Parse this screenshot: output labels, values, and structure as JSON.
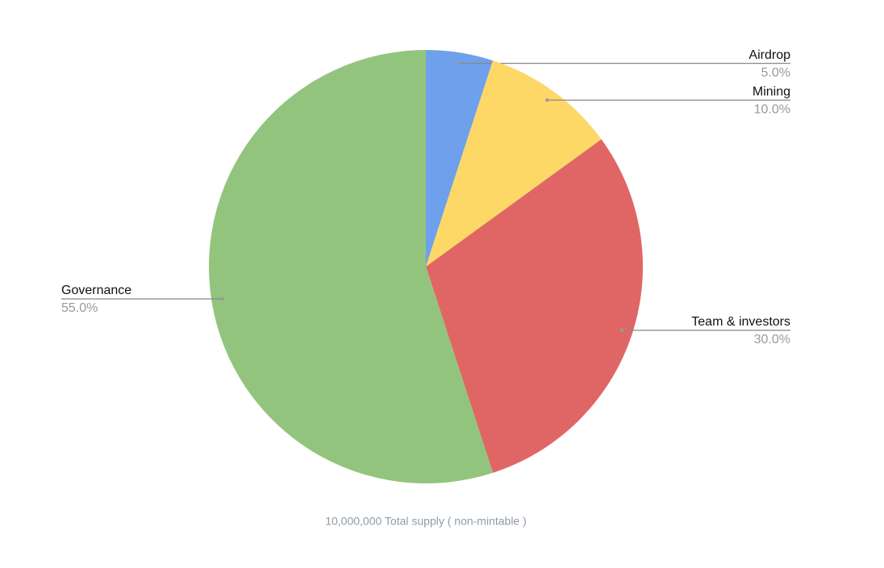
{
  "chart_data": {
    "type": "pie",
    "categories": [
      "Airdrop",
      "Mining",
      "Team & investors",
      "Governance"
    ],
    "values": [
      5,
      10,
      30,
      55
    ],
    "value_labels": [
      "5.0%",
      "10.0%",
      "30.0%",
      "55.0%"
    ],
    "colors": [
      "#6fa0eb",
      "#fdd867",
      "#e06666",
      "#93c47d"
    ],
    "caption": "10,000,000 Total supply ( non-mintable )"
  }
}
